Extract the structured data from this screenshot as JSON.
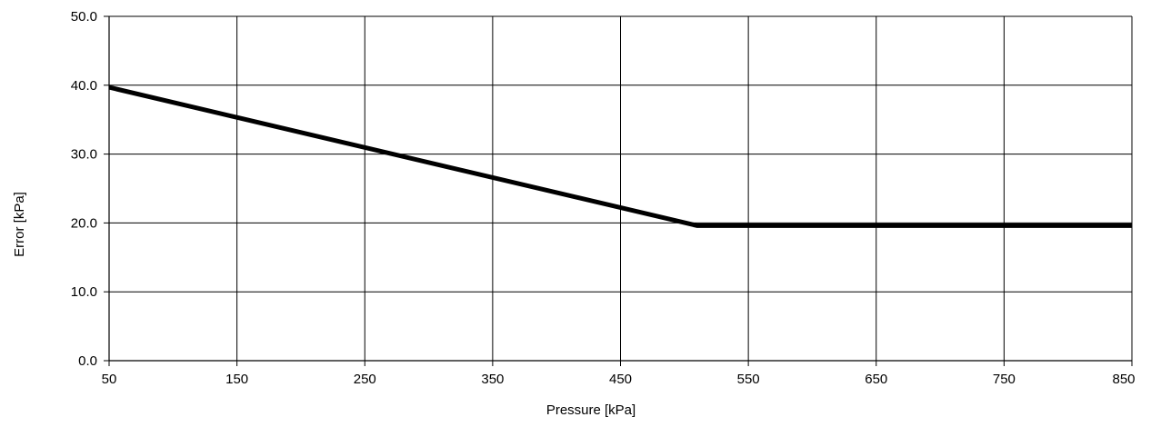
{
  "chart_data": {
    "type": "line",
    "title": "",
    "xlabel": "Pressure [kPa]",
    "ylabel": "Error [kPa]",
    "xlim": [
      50,
      850
    ],
    "ylim": [
      0,
      50
    ],
    "x_ticks": [
      50,
      150,
      250,
      350,
      450,
      550,
      650,
      750,
      850
    ],
    "x_tick_labels": [
      "50",
      "150",
      "250",
      "350",
      "450",
      "550",
      "650",
      "750",
      "850"
    ],
    "y_ticks": [
      0,
      10,
      20,
      30,
      40,
      50
    ],
    "y_tick_labels": [
      "0.0",
      "10.0",
      "20.0",
      "30.0",
      "40.0",
      "50.0"
    ],
    "grid": true,
    "legend": "none",
    "series": [
      {
        "color": "#000000",
        "x": [
          50,
          510,
          850
        ],
        "y": [
          39.7,
          19.6,
          19.6
        ]
      }
    ]
  }
}
